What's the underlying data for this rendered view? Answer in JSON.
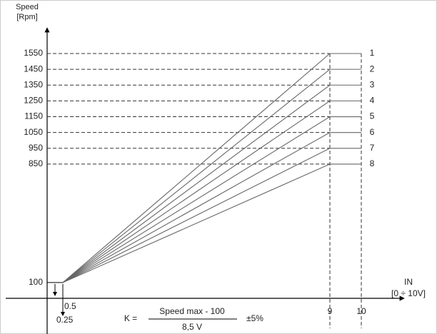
{
  "chart_data": {
    "type": "line",
    "y_label_lines": [
      "Speed",
      "[Rpm]"
    ],
    "x_label_lines": [
      "IN",
      "[0 ÷ 10V]"
    ],
    "formula": {
      "lhs": "K =",
      "numerator": "Speed max - 100",
      "denominator": "8,5 V",
      "tolerance": "±5%"
    },
    "x": [
      0.5,
      9,
      10
    ],
    "series": [
      {
        "name": "1",
        "color": "#666666",
        "values": [
          100,
          1550,
          1550
        ]
      },
      {
        "name": "2",
        "color": "#666666",
        "values": [
          100,
          1450,
          1450
        ]
      },
      {
        "name": "3",
        "color": "#666666",
        "values": [
          100,
          1350,
          1350
        ]
      },
      {
        "name": "4",
        "color": "#666666",
        "values": [
          100,
          1250,
          1250
        ]
      },
      {
        "name": "5",
        "color": "#666666",
        "values": [
          100,
          1150,
          1150
        ]
      },
      {
        "name": "6",
        "color": "#666666",
        "values": [
          100,
          1050,
          1050
        ]
      },
      {
        "name": "7",
        "color": "#666666",
        "values": [
          100,
          950,
          950
        ]
      },
      {
        "name": "8",
        "color": "#666666",
        "values": [
          100,
          850,
          850
        ]
      }
    ],
    "xlim": [
      0,
      11.3
    ],
    "ylim": [
      0,
      1700
    ],
    "xticks": [
      0.25,
      0.5,
      9,
      10
    ],
    "yticks": [
      100,
      850,
      950,
      1050,
      1150,
      1250,
      1350,
      1450,
      1550
    ],
    "grid": true
  }
}
